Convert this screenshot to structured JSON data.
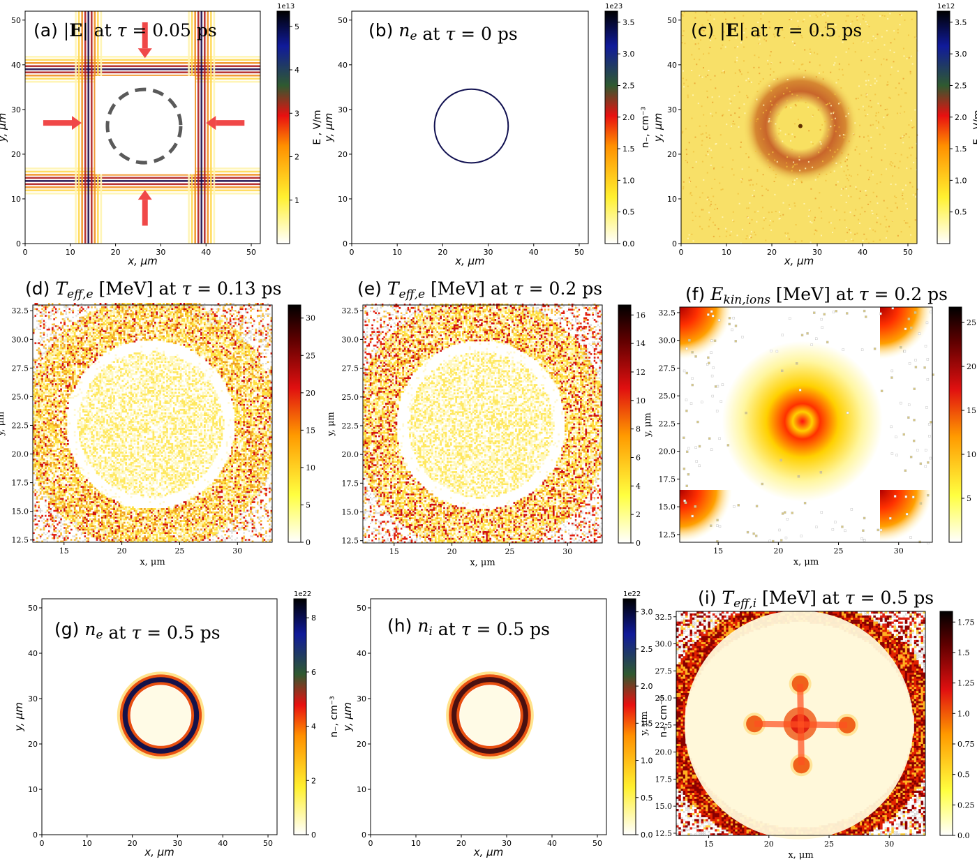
{
  "colors": {
    "accent_arrow": "#f04848",
    "target_circle": "#5a5a5a"
  },
  "chart_data": [
    {
      "id": "a",
      "type": "heatmap",
      "title": "(a) |E| at τ = 0.05 ps",
      "xlabel": "x, μm",
      "ylabel": "y, μm",
      "xlim": [
        0,
        52
      ],
      "ylim": [
        0,
        52
      ],
      "xticks": [
        "0",
        "10",
        "20",
        "30",
        "40",
        "50"
      ],
      "yticks": [
        "0",
        "10",
        "20",
        "30",
        "40",
        "50"
      ],
      "colorbar": {
        "label": "E , V/m",
        "exponent": "1e13",
        "ticks": [
          "1",
          "2",
          "3",
          "4",
          "5"
        ]
      }
    },
    {
      "id": "b",
      "type": "heatmap",
      "title": "(b) n_e at τ = 0 ps",
      "xlabel": "x, μm",
      "ylabel": "y, μm",
      "xlim": [
        0,
        52
      ],
      "ylim": [
        0,
        52
      ],
      "xticks": [
        "0",
        "10",
        "20",
        "30",
        "40",
        "50"
      ],
      "yticks": [
        "0",
        "10",
        "20",
        "30",
        "40",
        "50"
      ],
      "colorbar": {
        "label": "n₋, cm⁻³",
        "exponent": "1e23",
        "ticks": [
          "0.0",
          "0.5",
          "1.0",
          "1.5",
          "2.0",
          "2.5",
          "3.0",
          "3.5"
        ]
      }
    },
    {
      "id": "c",
      "type": "heatmap",
      "title": "(c) |E| at τ = 0.5 ps",
      "xlabel": "x, μm",
      "ylabel": "y, μm",
      "xlim": [
        0,
        52
      ],
      "ylim": [
        0,
        52
      ],
      "xticks": [
        "0",
        "10",
        "20",
        "30",
        "40",
        "50"
      ],
      "yticks": [
        "0",
        "10",
        "20",
        "30",
        "40",
        "50"
      ],
      "colorbar": {
        "label": "E , V/m",
        "exponent": "1e12",
        "ticks": [
          "0.5",
          "1.0",
          "1.5",
          "2.0",
          "2.5",
          "3.0",
          "3.5"
        ]
      }
    },
    {
      "id": "d",
      "type": "heatmap",
      "title": "(d) T_eff,e [MeV] at τ = 0.13 ps",
      "xlabel": "x, μm",
      "ylabel": "y, μm",
      "xlim": [
        12.3,
        33
      ],
      "ylim": [
        12.3,
        33
      ],
      "xticks": [
        "15",
        "20",
        "25",
        "30"
      ],
      "yticks": [
        "12.5",
        "15.0",
        "17.5",
        "20.0",
        "22.5",
        "25.0",
        "27.5",
        "30.0",
        "32.5"
      ],
      "colorbar": {
        "label": "",
        "exponent": "",
        "ticks": [
          "0",
          "5",
          "10",
          "15",
          "20",
          "25",
          "30"
        ]
      }
    },
    {
      "id": "e",
      "type": "heatmap",
      "title": "(e) T_eff,e [MeV] at τ = 0.2 ps",
      "xlabel": "x, μm",
      "ylabel": "y, μm",
      "xlim": [
        12.3,
        33
      ],
      "ylim": [
        12.3,
        33
      ],
      "xticks": [
        "15",
        "20",
        "25",
        "30"
      ],
      "yticks": [
        "12.5",
        "15.0",
        "17.5",
        "20.0",
        "22.5",
        "25.0",
        "27.5",
        "30.0",
        "32.5"
      ],
      "colorbar": {
        "label": "",
        "exponent": "",
        "ticks": [
          "0",
          "2",
          "4",
          "6",
          "8",
          "10",
          "12",
          "14",
          "16"
        ]
      }
    },
    {
      "id": "f",
      "type": "heatmap",
      "title": "(f) E_kin,ions [MeV] at τ = 0.2 ps",
      "xlabel": "x, μm",
      "ylabel": "y, μm",
      "xlim": [
        11.8,
        32.8
      ],
      "ylim": [
        11.8,
        33
      ],
      "xticks": [
        "15",
        "20",
        "25",
        "30"
      ],
      "yticks": [
        "12.5",
        "15.0",
        "17.5",
        "20.0",
        "22.5",
        "25.0",
        "27.5",
        "30.0",
        "32.5"
      ],
      "colorbar": {
        "label": "",
        "exponent": "",
        "ticks": [
          "5",
          "10",
          "15",
          "20",
          "25"
        ]
      }
    },
    {
      "id": "g",
      "type": "heatmap",
      "title": "(g) n_e at τ = 0.5 ps",
      "xlabel": "x, μm",
      "ylabel": "y, μm",
      "xlim": [
        0,
        52
      ],
      "ylim": [
        0,
        52
      ],
      "xticks": [
        "0",
        "10",
        "20",
        "30",
        "40",
        "50"
      ],
      "yticks": [
        "0",
        "10",
        "20",
        "30",
        "40",
        "50"
      ],
      "colorbar": {
        "label": "n₋, cm⁻³",
        "exponent": "1e22",
        "ticks": [
          "0",
          "2",
          "4",
          "6",
          "8"
        ]
      }
    },
    {
      "id": "h",
      "type": "heatmap",
      "title": "(h) n_i at τ = 0.5 ps",
      "xlabel": "x, μm",
      "ylabel": "y, μm",
      "xlim": [
        0,
        52
      ],
      "ylim": [
        0,
        52
      ],
      "xticks": [
        "0",
        "10",
        "20",
        "30",
        "40",
        "50"
      ],
      "yticks": [
        "0",
        "10",
        "20",
        "30",
        "40",
        "50"
      ],
      "colorbar": {
        "label": "n₊, cm⁻³",
        "exponent": "1e22",
        "ticks": [
          "0.0",
          "0.5",
          "1.0",
          "1.5",
          "2.0",
          "2.5",
          "3.0"
        ]
      }
    },
    {
      "id": "i",
      "type": "heatmap",
      "title": "(i) T_eff,i [MeV] at τ = 0.5 ps",
      "xlabel": "x, μm",
      "ylabel": "y, μm",
      "xlim": [
        12.3,
        33
      ],
      "ylim": [
        12.3,
        33
      ],
      "xticks": [
        "15",
        "20",
        "25",
        "30"
      ],
      "yticks": [
        "12.5",
        "15.0",
        "17.5",
        "20.0",
        "22.5",
        "25.0",
        "27.5",
        "30.0",
        "32.5"
      ],
      "colorbar": {
        "label": "",
        "exponent": "",
        "ticks": [
          "0.0",
          "0.25",
          "0.5",
          "0.75",
          "1.0",
          "1.25",
          "1.5",
          "1.75"
        ]
      }
    }
  ]
}
